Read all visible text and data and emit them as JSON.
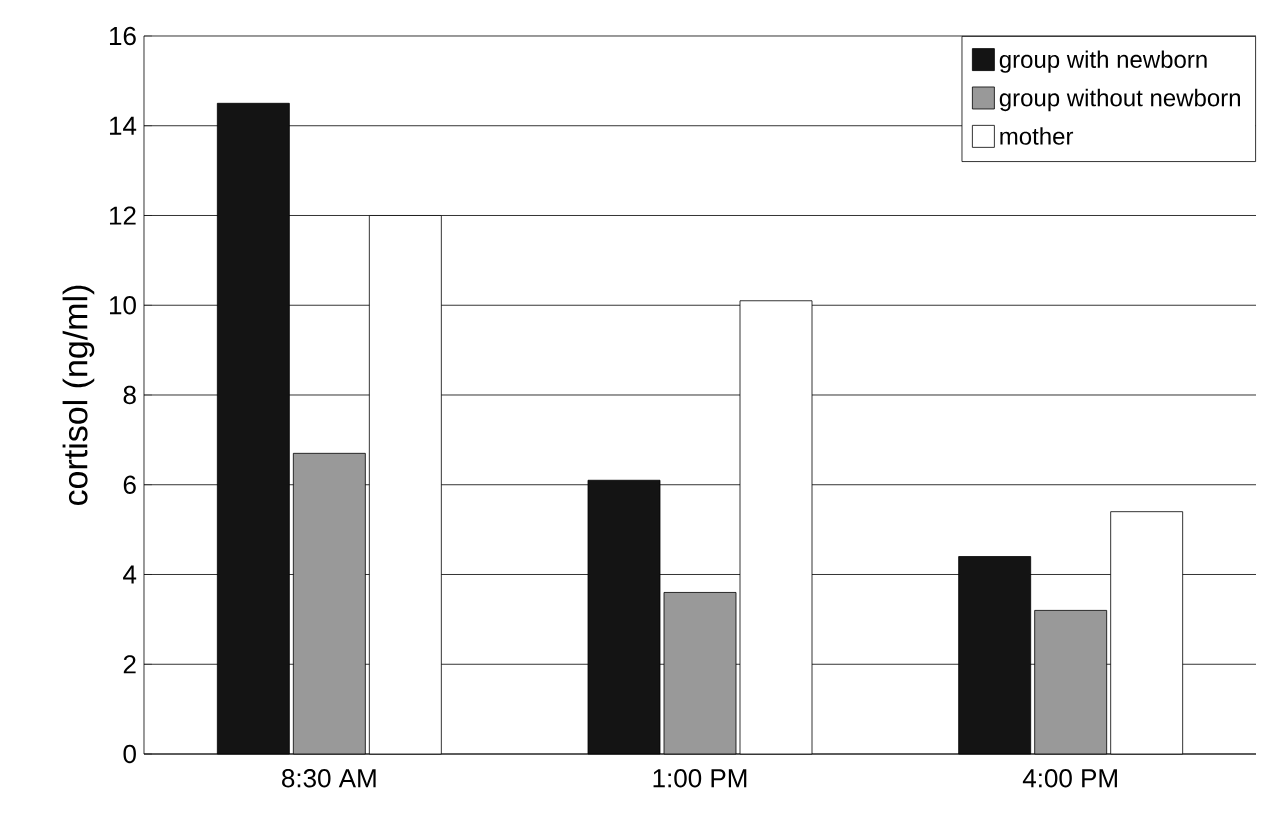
{
  "chart_data": {
    "type": "bar",
    "ylabel": "cortisol (ng/ml)",
    "categories": [
      "8:30 AM",
      "1:00 PM",
      "4:00 PM"
    ],
    "series": [
      {
        "name": "group with newborn",
        "color": "#141414",
        "values": [
          14.5,
          6.1,
          4.4
        ]
      },
      {
        "name": "group without newborn",
        "color": "#999999",
        "values": [
          6.7,
          3.6,
          3.2
        ]
      },
      {
        "name": "mother",
        "color": "#ffffff",
        "values": [
          12,
          10.1,
          5.4
        ]
      }
    ],
    "ylim": [
      0,
      16
    ],
    "yticks": [
      0,
      2,
      4,
      6,
      8,
      10,
      12,
      14,
      16
    ],
    "grid": "y",
    "legend": "top right"
  }
}
